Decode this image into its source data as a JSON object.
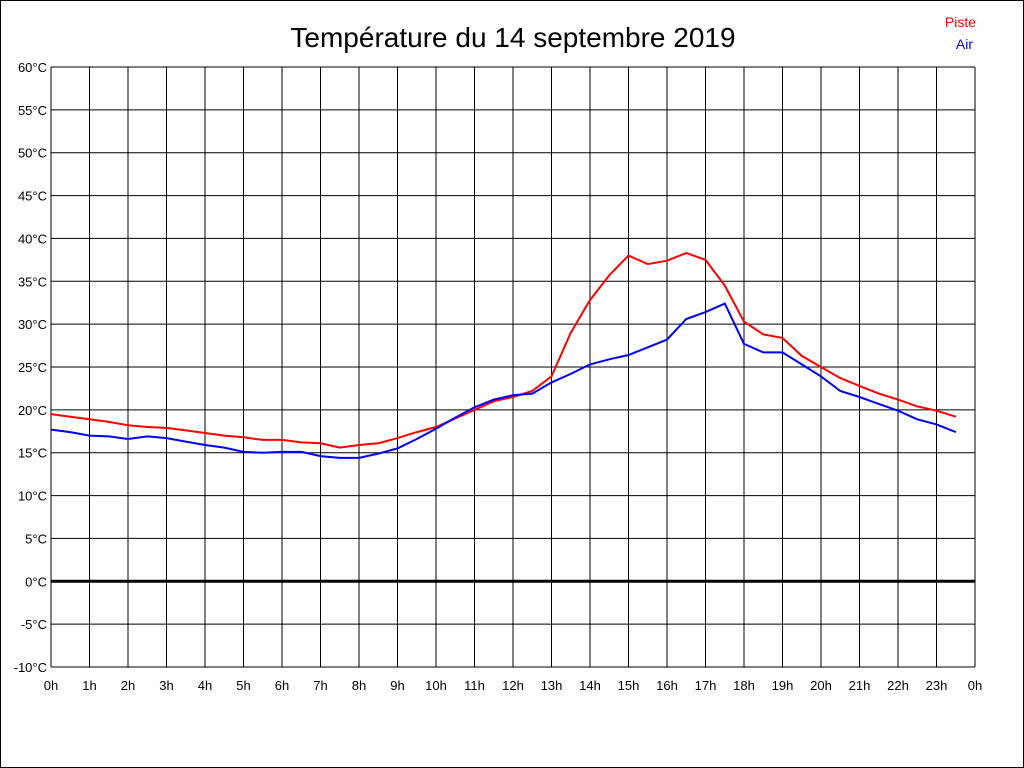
{
  "chart_data": {
    "type": "line",
    "title": "Température du 14 septembre 2019",
    "xlabel": "",
    "ylabel": "",
    "ylim": [
      -10,
      60
    ],
    "xlim": [
      0,
      24
    ],
    "grid": true,
    "legend_position": "top-right",
    "y_ticks": [
      "60°C",
      "55°C",
      "50°C",
      "45°C",
      "40°C",
      "35°C",
      "30°C",
      "25°C",
      "20°C",
      "15°C",
      "10°C",
      "5°C",
      "0°C",
      "-5°C",
      "-10°C"
    ],
    "x_ticks": [
      "0h",
      "1h",
      "2h",
      "3h",
      "4h",
      "5h",
      "6h",
      "7h",
      "8h",
      "9h",
      "10h",
      "11h",
      "12h",
      "13h",
      "14h",
      "15h",
      "16h",
      "17h",
      "18h",
      "19h",
      "20h",
      "21h",
      "22h",
      "23h",
      "0h"
    ],
    "x": [
      0,
      0.5,
      1,
      1.5,
      2,
      2.5,
      3,
      3.5,
      4,
      4.5,
      5,
      5.5,
      6,
      6.5,
      7,
      7.5,
      8,
      8.5,
      9,
      9.5,
      10,
      10.5,
      11,
      11.5,
      12,
      12.5,
      13,
      13.5,
      14,
      14.5,
      15,
      15.5,
      16,
      16.5,
      17,
      17.5,
      18,
      18.5,
      19,
      19.5,
      20,
      20.5,
      21,
      21.5,
      22,
      22.5,
      23,
      23.5
    ],
    "series": [
      {
        "name": "Piste",
        "color": "#ff0000",
        "values": [
          19.5,
          19.2,
          18.9,
          18.6,
          18.2,
          18.0,
          17.9,
          17.6,
          17.3,
          17.0,
          16.8,
          16.5,
          16.5,
          16.2,
          16.1,
          15.6,
          15.9,
          16.1,
          16.7,
          17.4,
          18.0,
          19.0,
          20.0,
          21.0,
          21.5,
          22.2,
          23.9,
          29.0,
          32.8,
          35.7,
          38.0,
          37.0,
          37.4,
          38.3,
          37.5,
          34.5,
          30.3,
          28.8,
          28.4,
          26.3,
          25.0,
          23.7,
          22.8,
          21.9,
          21.2,
          20.4,
          19.9,
          19.2
        ]
      },
      {
        "name": "Air",
        "color": "#0000ff",
        "values": [
          17.7,
          17.4,
          17.0,
          16.9,
          16.6,
          16.9,
          16.7,
          16.3,
          15.9,
          15.6,
          15.1,
          15.0,
          15.1,
          15.1,
          14.6,
          14.4,
          14.4,
          14.9,
          15.5,
          16.6,
          17.8,
          19.1,
          20.3,
          21.2,
          21.7,
          21.9,
          23.2,
          24.2,
          25.3,
          25.9,
          26.4,
          27.3,
          28.2,
          30.6,
          31.4,
          32.4,
          27.7,
          26.7,
          26.7,
          25.3,
          23.9,
          22.2,
          21.5,
          20.7,
          19.9,
          18.9,
          18.3,
          17.4
        ]
      }
    ]
  }
}
